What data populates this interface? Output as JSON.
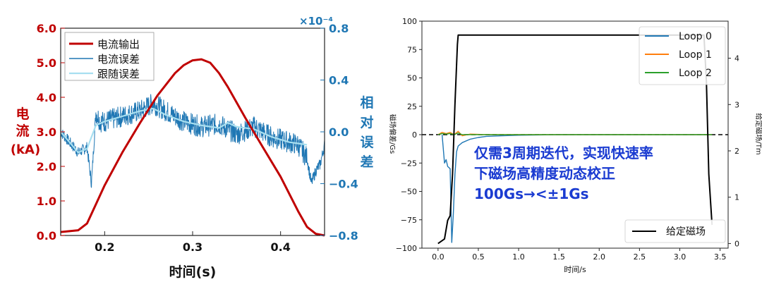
{
  "chart_data": [
    {
      "type": "line",
      "xlabel": "时间(s)",
      "ylabel_left": "电流\n(kA)",
      "ylabel_right": "相对误差",
      "y2_exponent": "×10⁻⁴",
      "xlim": [
        0.15,
        0.45
      ],
      "ylim_left": [
        0,
        6
      ],
      "ylim_right": [
        -0.8,
        0.8
      ],
      "x_ticks": [
        0.2,
        0.3,
        0.4
      ],
      "x_tick_labels": [
        "0.2",
        "0.3",
        "0.4"
      ],
      "y_ticks_left": [
        "0.0",
        "1.0",
        "2.0",
        "3.0",
        "4.0",
        "5.0",
        "6.0"
      ],
      "y_ticks_right": [
        "−0.8",
        "−0.4",
        "0.0",
        "0.4",
        "0.8"
      ],
      "legend_position": "top-left",
      "grid": false,
      "series": [
        {
          "name": "电流输出",
          "axis": "left",
          "color": "#c00000",
          "x": [
            0.15,
            0.17,
            0.18,
            0.19,
            0.2,
            0.22,
            0.24,
            0.26,
            0.28,
            0.29,
            0.3,
            0.31,
            0.32,
            0.33,
            0.34,
            0.36,
            0.38,
            0.4,
            0.42,
            0.43,
            0.44,
            0.45
          ],
          "values": [
            0.1,
            0.15,
            0.35,
            0.9,
            1.45,
            2.4,
            3.25,
            4.05,
            4.7,
            4.93,
            5.07,
            5.1,
            5.0,
            4.7,
            4.3,
            3.4,
            2.55,
            1.7,
            0.7,
            0.25,
            0.05,
            0.0
          ]
        },
        {
          "name": "电流误差",
          "axis": "right",
          "color": "#1f77b4",
          "x": [
            0.15,
            0.16,
            0.17,
            0.18,
            0.185,
            0.19,
            0.195,
            0.2,
            0.22,
            0.24,
            0.255,
            0.27,
            0.29,
            0.31,
            0.33,
            0.35,
            0.37,
            0.39,
            0.41,
            0.42,
            0.43,
            0.435,
            0.44,
            0.445,
            0.45
          ],
          "values": [
            0.0,
            -0.08,
            -0.16,
            -0.12,
            -0.4,
            0.15,
            0.08,
            0.08,
            0.12,
            0.16,
            0.22,
            0.16,
            0.08,
            0.04,
            0.06,
            -0.02,
            0.04,
            -0.04,
            -0.08,
            -0.1,
            -0.2,
            -0.4,
            -0.3,
            -0.25,
            -0.1
          ]
        },
        {
          "name": "跟随误差",
          "axis": "right",
          "color": "#a7dff0",
          "x": [
            0.15,
            0.16,
            0.17,
            0.18,
            0.19,
            0.2,
            0.22,
            0.24,
            0.255,
            0.27,
            0.29,
            0.31,
            0.33,
            0.34,
            0.35,
            0.37,
            0.39,
            0.41,
            0.42,
            0.43
          ],
          "values": [
            0.0,
            -0.08,
            -0.16,
            -0.13,
            0.05,
            0.08,
            0.12,
            0.16,
            0.18,
            0.13,
            0.08,
            0.05,
            0.03,
            0.07,
            0.04,
            0.02,
            -0.04,
            -0.08,
            -0.09,
            -0.1
          ]
        }
      ]
    },
    {
      "type": "line",
      "xlabel": "时间/s",
      "ylabel_left": "磁场偏差/Gs",
      "ylabel_right": "给定磁场/Tm",
      "xlim": [
        -0.2,
        3.6
      ],
      "ylim_left": [
        -100,
        100
      ],
      "ylim_right": [
        -0.1,
        4.8
      ],
      "x_ticks": [
        0.0,
        0.5,
        1.0,
        1.5,
        2.0,
        2.5,
        3.0,
        3.5
      ],
      "x_tick_labels": [
        "0.0",
        "0.5",
        "1.0",
        "1.5",
        "2.0",
        "2.5",
        "3.0",
        "3.5"
      ],
      "y_ticks_left": [
        -100,
        -75,
        -50,
        -25,
        0,
        25,
        50,
        75,
        100
      ],
      "y_tick_labels_left": [
        "−100",
        "−75",
        "−50",
        "−25",
        "0",
        "25",
        "50",
        "75",
        "100"
      ],
      "y_ticks_right": [
        0,
        1,
        2,
        3,
        4
      ],
      "y_tick_labels_right": [
        "0",
        "1",
        "2",
        "3",
        "4"
      ],
      "legend_position": "top-right",
      "legend2_position": "bottom-right",
      "grid": false,
      "annotation": "仅需3周期迭代，实现快速率\n下磁场高精度动态校正\n100Gs→<±1Gs",
      "series": [
        {
          "name": "Loop  0",
          "axis": "left",
          "color": "#1f77b4",
          "x": [
            0.05,
            0.08,
            0.1,
            0.12,
            0.15,
            0.17,
            0.19,
            0.21,
            0.23,
            0.25,
            0.3,
            0.4,
            0.5,
            0.6,
            0.8,
            1.0,
            1.5,
            2.0,
            2.5,
            3.0,
            3.4
          ],
          "values": [
            0,
            -25,
            -22,
            -28,
            -30,
            -95,
            -70,
            -35,
            -15,
            -10,
            -7,
            -4,
            -2.5,
            -1.5,
            -1,
            -0.5,
            0,
            0,
            0,
            0,
            0
          ]
        },
        {
          "name": "Loop  1",
          "axis": "left",
          "color": "#ff7f0e",
          "x": [
            0.0,
            0.05,
            0.1,
            0.15,
            0.2,
            0.25,
            0.3,
            0.4,
            0.6,
            1.0,
            1.5,
            2.0,
            2.5,
            3.0,
            3.4
          ],
          "values": [
            0,
            2,
            1,
            2,
            0,
            3,
            -1,
            0.5,
            0,
            0,
            0,
            0,
            0,
            0,
            0
          ]
        },
        {
          "name": "Loop  2",
          "axis": "left",
          "color": "#2ca02c",
          "x": [
            0.0,
            0.05,
            0.1,
            0.15,
            0.2,
            0.25,
            0.3,
            0.4,
            0.6,
            1.0,
            1.5,
            2.0,
            2.5,
            3.0,
            3.4
          ],
          "values": [
            0,
            1,
            0.5,
            1,
            0,
            1.5,
            0,
            0,
            0,
            0,
            0,
            0,
            0,
            0,
            0
          ]
        },
        {
          "name": "给定磁场",
          "axis": "right",
          "color": "#000000",
          "x": [
            0.0,
            0.08,
            0.12,
            0.15,
            0.18,
            0.21,
            0.24,
            0.25,
            0.27,
            3.3,
            3.33,
            3.36,
            3.4
          ],
          "values": [
            0.0,
            0.1,
            0.5,
            0.6,
            1.5,
            3.0,
            4.3,
            4.5,
            4.5,
            4.5,
            3.5,
            1.5,
            0.4
          ]
        }
      ]
    }
  ]
}
